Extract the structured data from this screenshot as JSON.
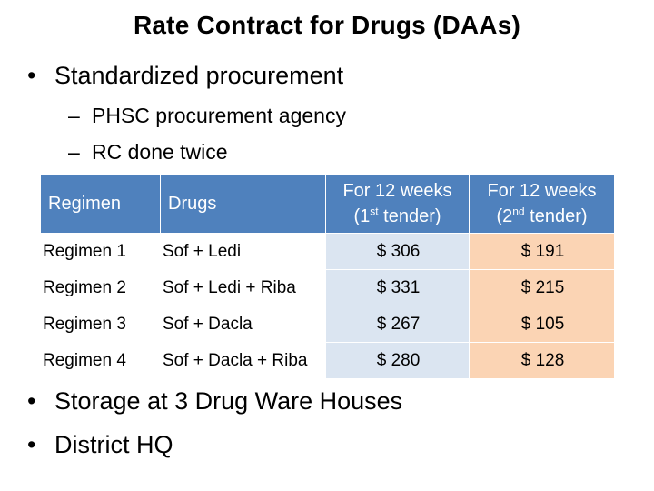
{
  "slide": {
    "title": "Rate Contract for Drugs (DAAs)",
    "bullet_main": "Standardized procurement",
    "sub_bullets": [
      "PHSC procurement agency",
      "RC done twice"
    ],
    "bottom_bullets": [
      "Storage at 3 Drug Ware Houses",
      "District HQ"
    ],
    "bullet_symbol": "•",
    "dash_symbol": "–"
  },
  "table": {
    "headers": {
      "regimen": "Regimen",
      "drugs": "Drugs",
      "first_line1": "For 12 weeks",
      "first_open": "(1",
      "first_sup": "st",
      "first_close": " tender)",
      "second_line1": "For 12 weeks",
      "second_open": "(2",
      "second_sup": "nd",
      "second_close": " tender)"
    },
    "rows": [
      {
        "regimen": "Regimen 1",
        "drugs": "Sof + Ledi",
        "first": "$ 306",
        "second": "$ 191"
      },
      {
        "regimen": "Regimen 2",
        "drugs": "Sof + Ledi + Riba",
        "first": "$ 331",
        "second": "$ 215"
      },
      {
        "regimen": "Regimen 3",
        "drugs": "Sof + Dacla",
        "first": "$ 267",
        "second": "$ 105"
      },
      {
        "regimen": "Regimen 4",
        "drugs": "Sof + Dacla + Riba",
        "first": "$ 280",
        "second": "$ 128"
      }
    ]
  },
  "colors": {
    "header_bg": "#4f81bd",
    "first_tender_bg": "#dbe5f1",
    "second_tender_bg": "#fbd4b4"
  }
}
